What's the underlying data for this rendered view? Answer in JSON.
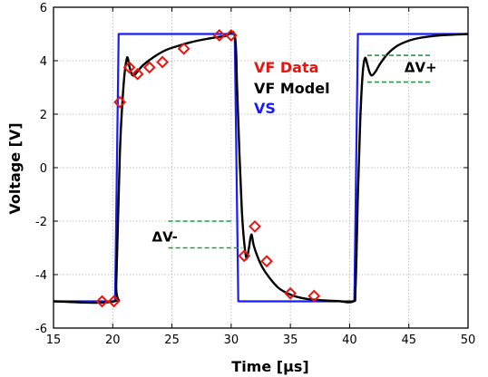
{
  "chart_data": {
    "type": "line",
    "xlabel": "Time [µs]",
    "ylabel": "Voltage [V]",
    "xlim": [
      15,
      50
    ],
    "ylim": [
      -6,
      6
    ],
    "xticks": [
      15,
      20,
      25,
      30,
      35,
      40,
      45,
      50
    ],
    "yticks": [
      -6,
      -4,
      -2,
      0,
      2,
      4,
      6
    ],
    "grid": true,
    "legend_placement": "upper-center",
    "series": [
      {
        "name": "VS",
        "kind": "line",
        "color": "#1a1aff",
        "x": [
          15,
          20.2,
          20.5,
          30.3,
          30.6,
          40.4,
          40.7,
          50
        ],
        "y": [
          -5,
          -5,
          5,
          5,
          -5,
          -5,
          5,
          5
        ]
      },
      {
        "name": "VF Model",
        "kind": "line",
        "color": "#000000",
        "x": [
          15,
          20.1,
          20.3,
          20.6,
          20.9,
          21.2,
          21.4,
          21.6,
          21.8,
          22.1,
          22.6,
          23.5,
          24.5,
          25.5,
          26.5,
          27.5,
          28.5,
          29.5,
          30.3,
          30.5,
          30.7,
          30.9,
          31.1,
          31.3,
          31.5,
          31.7,
          31.9,
          32.2,
          32.6,
          33.2,
          34,
          35,
          36,
          37,
          38,
          39,
          40.3,
          40.5,
          40.7,
          40.9,
          41.1,
          41.3,
          41.5,
          41.7,
          41.9,
          42.2,
          42.6,
          43.2,
          44,
          45,
          46,
          47,
          48,
          49,
          50
        ],
        "y": [
          -5,
          -5,
          -4.3,
          0.5,
          3.0,
          4.1,
          3.8,
          3.5,
          3.45,
          3.6,
          3.85,
          4.15,
          4.4,
          4.55,
          4.68,
          4.78,
          4.86,
          4.92,
          4.95,
          3.0,
          0.5,
          -1.6,
          -2.8,
          -3.4,
          -3.0,
          -2.5,
          -2.9,
          -3.3,
          -3.7,
          -4.1,
          -4.5,
          -4.75,
          -4.88,
          -4.94,
          -4.97,
          -4.99,
          -5.0,
          -4.5,
          -1.0,
          1.8,
          3.5,
          4.1,
          3.85,
          3.55,
          3.45,
          3.6,
          3.9,
          4.25,
          4.55,
          4.75,
          4.86,
          4.92,
          4.96,
          4.98,
          5.0
        ]
      },
      {
        "name": "VF Data",
        "kind": "scatter",
        "marker": "diamond",
        "color": "#e8150f",
        "x": [
          19.1,
          20.1,
          20.6,
          21.4,
          22.1,
          23.1,
          24.2,
          26.0,
          29.0,
          30.0,
          31.1,
          32.0,
          33.0,
          35.0,
          37.0
        ],
        "y": [
          -5.0,
          -5.0,
          2.45,
          3.75,
          3.5,
          3.75,
          3.95,
          4.45,
          4.95,
          4.95,
          -3.3,
          -2.2,
          -3.5,
          -4.7,
          -4.8
        ]
      }
    ],
    "annotations": [
      {
        "text": "ΔV-",
        "lines": [
          {
            "x": [
              24.7,
              30.0
            ],
            "y": [
              -2.0,
              -2.0
            ]
          },
          {
            "x": [
              24.7,
              30.9
            ],
            "y": [
              -3.0,
              -3.0
            ]
          }
        ],
        "label_at": [
          24.4,
          -2.6
        ]
      },
      {
        "text": "ΔV+",
        "lines": [
          {
            "x": [
              41.5,
              47.0
            ],
            "y": [
              4.2,
              4.2
            ]
          },
          {
            "x": [
              41.5,
              47.0
            ],
            "y": [
              3.2,
              3.2
            ]
          }
        ],
        "label_at": [
          46.0,
          3.75
        ]
      }
    ]
  },
  "colors": {
    "vs": "#1a1aff",
    "model": "#000000",
    "data": "#e8150f",
    "annotation_line": "#1e9e3e",
    "grid": "#b0b0b0"
  },
  "legend": [
    {
      "label": "VF Data",
      "color": "#e8150f"
    },
    {
      "label": "VF Model",
      "color": "#000000"
    },
    {
      "label": "VS",
      "color": "#1a1aff"
    }
  ]
}
